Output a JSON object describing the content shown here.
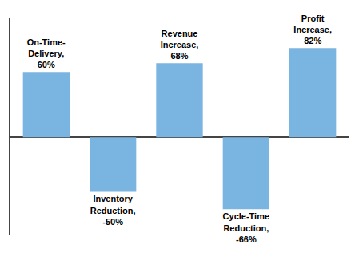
{
  "chart_data": {
    "type": "bar",
    "categories": [
      "On-Time-\nDelivery,\n60%",
      "Inventory\nReduction,\n-50%",
      "Revenue\nIncrease,\n68%",
      "Cycle-Time\nReduction,\n-66%",
      "Profit\nIncrease,\n82%"
    ],
    "values": [
      60,
      -50,
      68,
      -66,
      82
    ],
    "color": "#7ab4e0",
    "ylim": [
      -90,
      110
    ],
    "tick_labels": false,
    "grid": false
  }
}
